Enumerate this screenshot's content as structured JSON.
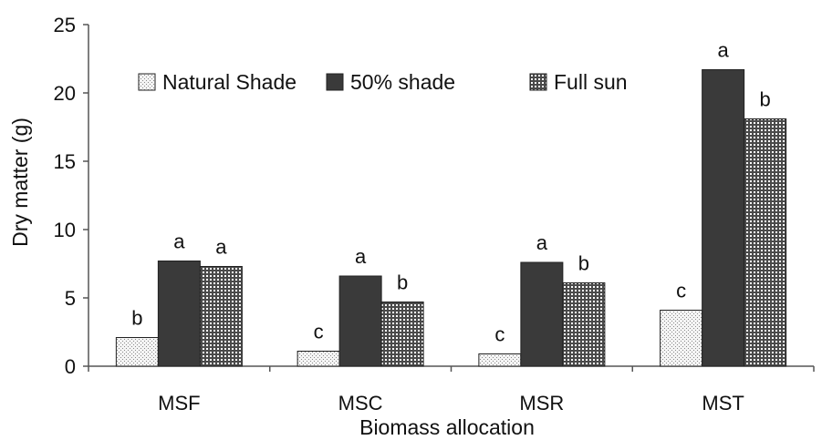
{
  "chart_data": {
    "type": "bar",
    "title": "",
    "xlabel": "Biomass allocation",
    "ylabel": "Dry matter (g)",
    "ylim": [
      0,
      25
    ],
    "yticks": [
      0,
      5,
      10,
      15,
      20,
      25
    ],
    "grid": false,
    "legend_position": "top",
    "categories": [
      "MSF",
      "MSC",
      "MSR",
      "MST"
    ],
    "series": [
      {
        "name": "Natural Shade",
        "pattern": "dotted",
        "color": "#d8d8d8",
        "values": [
          2.1,
          1.1,
          0.9,
          4.1
        ],
        "labels": [
          "b",
          "c",
          "c",
          "c"
        ]
      },
      {
        "name": "50% shade",
        "pattern": "solid",
        "color": "#3a3a3a",
        "values": [
          7.7,
          6.6,
          7.6,
          21.7
        ],
        "labels": [
          "a",
          "a",
          "a",
          "a"
        ]
      },
      {
        "name": "Full sun",
        "pattern": "grid",
        "color": "#555555",
        "values": [
          7.3,
          4.7,
          6.1,
          18.1
        ],
        "labels": [
          "a",
          "b",
          "b",
          "b"
        ]
      }
    ]
  }
}
